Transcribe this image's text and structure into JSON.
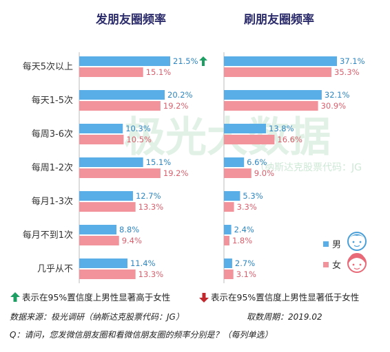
{
  "watermark": {
    "main": "极光大数据",
    "sub": "（纳斯达克股票代码：JG"
  },
  "legend": {
    "male": "男",
    "female": "女"
  },
  "colors": {
    "male": "#5aaee8",
    "female": "#f2939c",
    "male_text": "#2e86c1",
    "female_text": "#d9606e",
    "up_arrow": "#1f9e63",
    "down_arrow": "#c0282d"
  },
  "chart_data": [
    {
      "type": "bar",
      "orientation": "horizontal",
      "title": "发朋友圈频率",
      "categories": [
        "每天5次以上",
        "每天1-5次",
        "每周3-6次",
        "每周1-2次",
        "每月1-3次",
        "每月不到1次",
        "几乎从不"
      ],
      "series": [
        {
          "name": "男",
          "values": [
            21.5,
            20.2,
            10.3,
            15.1,
            12.7,
            8.8,
            11.4
          ],
          "labels": [
            "21.5%",
            "20.2%",
            "10.3%",
            "15.1%",
            "12.7%",
            "8.8%",
            "11.4%"
          ]
        },
        {
          "name": "女",
          "values": [
            15.1,
            19.2,
            10.5,
            19.2,
            13.3,
            9.4,
            13.3
          ],
          "labels": [
            "15.1%",
            "19.2%",
            "10.5%",
            "19.2%",
            "13.3%",
            "9.4%",
            "13.3%"
          ]
        }
      ],
      "significance": [
        {
          "category": "每天5次以上",
          "series": "男",
          "direction": "up"
        }
      ],
      "xlim": [
        0,
        25
      ]
    },
    {
      "type": "bar",
      "orientation": "horizontal",
      "title": "刷朋友圈频率",
      "categories": [
        "每天5次以上",
        "每天1-5次",
        "每周3-6次",
        "每周1-2次",
        "每月1-3次",
        "每月不到1次",
        "几乎从不"
      ],
      "series": [
        {
          "name": "男",
          "values": [
            37.1,
            32.1,
            13.8,
            6.6,
            5.3,
            2.4,
            2.7
          ],
          "labels": [
            "37.1%",
            "32.1%",
            "13.8%",
            "6.6%",
            "5.3%",
            "2.4%",
            "2.7%"
          ]
        },
        {
          "name": "女",
          "values": [
            35.3,
            30.9,
            16.6,
            9.0,
            3.3,
            1.8,
            3.1
          ],
          "labels": [
            "35.3%",
            "30.9%",
            "16.6%",
            "9.0%",
            "3.3%",
            "1.8%",
            "3.1%"
          ]
        }
      ],
      "xlim": [
        0,
        42
      ]
    }
  ],
  "footer": {
    "up_note": "表示在95%置信度上男性显著高于女性",
    "down_note": "表示在95%置信度上男性显著低于女性",
    "source": "数据来源：极光调研（纳斯达克股票代码：JG）",
    "period": "取数周期：2019.02",
    "question": "Q：请问，您发微信朋友圈和看微信朋友圈的频率分别是？（每列单选）"
  }
}
